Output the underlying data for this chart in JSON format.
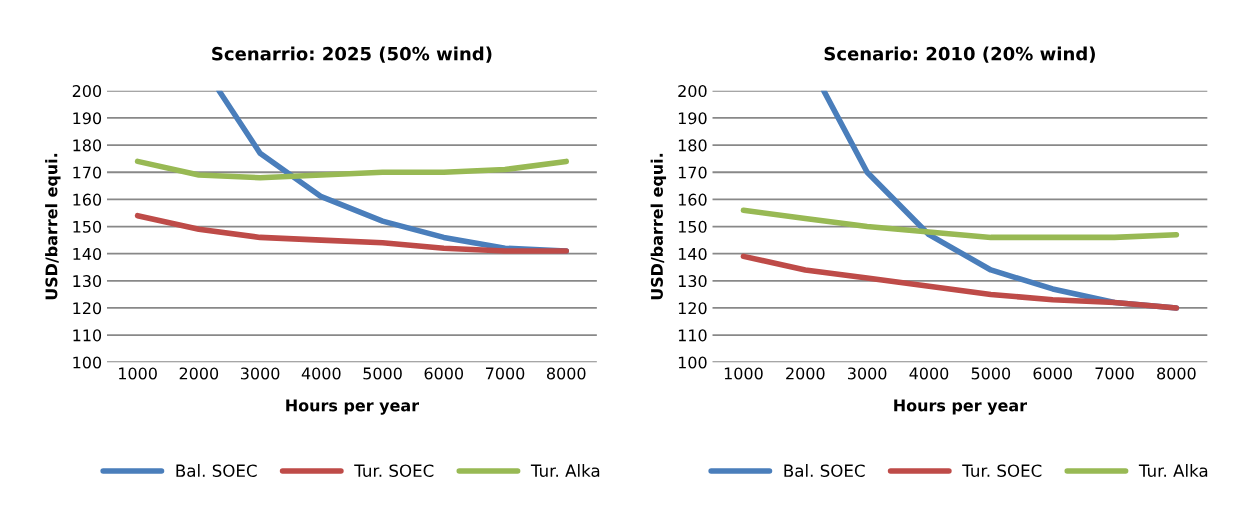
{
  "chart_data": [
    {
      "type": "line",
      "title": "Scenarrio: 2025 (50% wind)",
      "xlabel": "Hours per year",
      "ylabel": "USD/barrel equi.",
      "x": [
        1000,
        2000,
        3000,
        4000,
        5000,
        6000,
        7000,
        8000
      ],
      "xlim": [
        500,
        8500
      ],
      "xticks": [
        1000,
        2000,
        3000,
        4000,
        5000,
        6000,
        7000,
        8000
      ],
      "ylim": [
        100,
        200
      ],
      "yticks": [
        100,
        110,
        120,
        130,
        140,
        150,
        160,
        170,
        180,
        190,
        200
      ],
      "grid": "y",
      "legend": "bottom",
      "marker": "none",
      "line_style": "solid",
      "series": [
        {
          "name": "Bal. SOEC",
          "color": "#4a7ebb",
          "x": [
            2330,
            3000,
            4000,
            5000,
            6000,
            7000,
            8000
          ],
          "values": [
            200,
            177,
            161,
            152,
            146,
            142,
            141
          ]
        },
        {
          "name": "Tur. SOEC",
          "color": "#be4b48",
          "values": [
            154,
            149,
            146,
            145,
            144,
            142,
            141,
            141
          ]
        },
        {
          "name": "Tur. Alka",
          "color": "#98b954",
          "values": [
            174,
            169,
            168,
            169,
            170,
            170,
            171,
            174
          ]
        }
      ]
    },
    {
      "type": "line",
      "title": "Scenario: 2010 (20% wind)",
      "xlabel": "Hours per year",
      "ylabel": "USD/barrel equi.",
      "x": [
        1000,
        2000,
        3000,
        4000,
        5000,
        6000,
        7000,
        8000
      ],
      "xlim": [
        500,
        8500
      ],
      "xticks": [
        1000,
        2000,
        3000,
        4000,
        5000,
        6000,
        7000,
        8000
      ],
      "ylim": [
        100,
        200
      ],
      "yticks": [
        100,
        110,
        120,
        130,
        140,
        150,
        160,
        170,
        180,
        190,
        200
      ],
      "grid": "y",
      "legend": "bottom",
      "marker": "none",
      "line_style": "solid",
      "series": [
        {
          "name": "Bal. SOEC",
          "color": "#4a7ebb",
          "x": [
            2300,
            3000,
            4000,
            5000,
            6000,
            7000,
            8000
          ],
          "values": [
            200,
            170,
            147,
            134,
            127,
            122,
            120
          ]
        },
        {
          "name": "Tur. SOEC",
          "color": "#be4b48",
          "values": [
            139,
            134,
            131,
            128,
            125,
            123,
            122,
            120
          ]
        },
        {
          "name": "Tur. Alka",
          "color": "#98b954",
          "values": [
            156,
            153,
            150,
            148,
            146,
            146,
            146,
            147
          ]
        }
      ]
    }
  ]
}
